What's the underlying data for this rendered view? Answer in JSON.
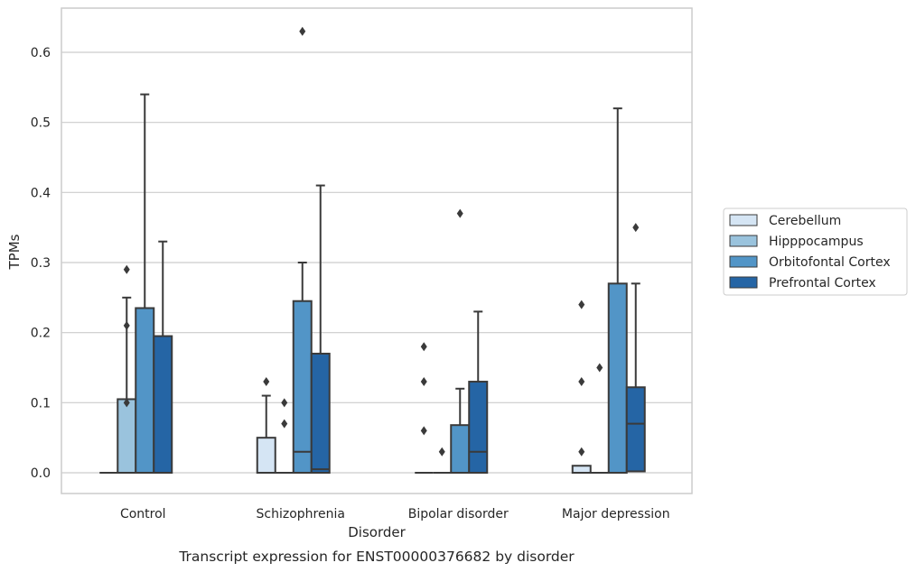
{
  "chart_data": {
    "type": "box",
    "title": "Transcript expression for ENST00000376682 by disorder",
    "xlabel": "Disorder",
    "ylabel": "TPMs",
    "ylim": [
      -0.03,
      0.665
    ],
    "yticks": [
      0.0,
      0.1,
      0.2,
      0.3,
      0.4,
      0.5,
      0.6
    ],
    "ytick_labels": [
      "0.0",
      "0.1",
      "0.2",
      "0.3",
      "0.4",
      "0.5",
      "0.6"
    ],
    "grid": "horizontal",
    "legend_position": "right",
    "categories": [
      "Control",
      "Schizophrenia",
      "Bipolar disorder",
      "Major depression"
    ],
    "series": [
      {
        "name": "Cerebellum",
        "color": "#d5e5f4",
        "boxes": [
          {
            "q1": 0,
            "median": 0,
            "q3": 0,
            "whislo": 0,
            "whishi": 0,
            "fliers": []
          },
          {
            "q1": 0,
            "median": 0,
            "q3": 0.05,
            "whislo": 0,
            "whishi": 0.11,
            "fliers": [
              0.13
            ]
          },
          {
            "q1": 0,
            "median": 0,
            "q3": 0,
            "whislo": 0,
            "whishi": 0,
            "fliers": [
              0.06,
              0.13,
              0.18
            ]
          },
          {
            "q1": 0,
            "median": 0,
            "q3": 0.01,
            "whislo": 0,
            "whishi": 0.01,
            "fliers": [
              0.03,
              0.13,
              0.24
            ]
          }
        ]
      },
      {
        "name": "Hipppocampus",
        "color": "#9ac3dd",
        "boxes": [
          {
            "q1": 0,
            "median": 0,
            "q3": 0.105,
            "whislo": 0,
            "whishi": 0.25,
            "fliers": [
              0.1,
              0.21,
              0.29
            ]
          },
          {
            "q1": 0,
            "median": 0,
            "q3": 0,
            "whislo": 0,
            "whishi": 0,
            "fliers": [
              0.07,
              0.1
            ]
          },
          {
            "q1": 0,
            "median": 0,
            "q3": 0,
            "whislo": 0,
            "whishi": 0,
            "fliers": [
              0.03
            ]
          },
          {
            "q1": 0,
            "median": 0,
            "q3": 0,
            "whislo": 0,
            "whishi": 0,
            "fliers": [
              0.15
            ]
          }
        ]
      },
      {
        "name": "Orbitofontal Cortex",
        "color": "#5295c7",
        "boxes": [
          {
            "q1": 0,
            "median": 0,
            "q3": 0.235,
            "whislo": 0,
            "whishi": 0.54,
            "fliers": []
          },
          {
            "q1": 0,
            "median": 0.03,
            "q3": 0.245,
            "whislo": 0,
            "whishi": 0.3,
            "fliers": [
              0.63
            ]
          },
          {
            "q1": 0,
            "median": 0,
            "q3": 0.068,
            "whislo": 0,
            "whishi": 0.12,
            "fliers": [
              0.37
            ]
          },
          {
            "q1": 0,
            "median": 0,
            "q3": 0.27,
            "whislo": 0,
            "whishi": 0.52,
            "fliers": []
          }
        ]
      },
      {
        "name": "Prefrontal Cortex",
        "color": "#2565a5",
        "boxes": [
          {
            "q1": 0,
            "median": 0,
            "q3": 0.195,
            "whislo": 0,
            "whishi": 0.33,
            "fliers": []
          },
          {
            "q1": 0,
            "median": 0.005,
            "q3": 0.17,
            "whislo": 0,
            "whishi": 0.41,
            "fliers": []
          },
          {
            "q1": 0,
            "median": 0.03,
            "q3": 0.13,
            "whislo": 0,
            "whishi": 0.23,
            "fliers": []
          },
          {
            "q1": 0.002,
            "median": 0.07,
            "q3": 0.122,
            "whislo": 0,
            "whishi": 0.27,
            "fliers": [
              0.35
            ]
          }
        ]
      }
    ]
  }
}
